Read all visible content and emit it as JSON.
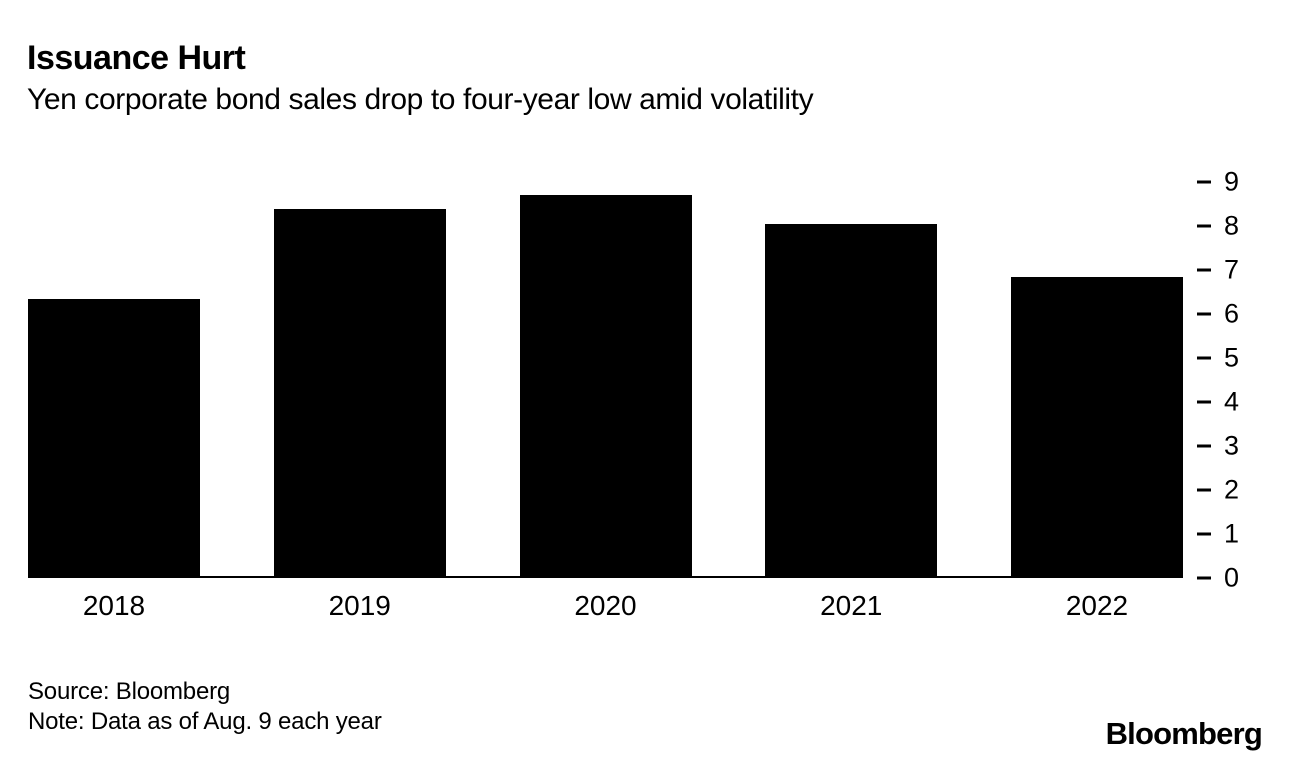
{
  "header": {
    "title": "Issuance Hurt",
    "subtitle": "Yen corporate bond sales drop to four-year low amid volatility"
  },
  "chart_data": {
    "type": "bar",
    "categories": [
      "2018",
      "2019",
      "2020",
      "2021",
      "2022"
    ],
    "values": [
      6.3,
      8.35,
      8.65,
      8.0,
      6.8
    ],
    "title": "Issuance Hurt",
    "subtitle": "Yen corporate bond sales drop to four-year low amid volatility",
    "xlabel": "",
    "ylabel": "",
    "ylim": [
      0,
      9
    ],
    "ytick_step": 1,
    "yaxis_side": "right",
    "grid": false,
    "legend": "none",
    "bar_color": "#000000",
    "background_color": "#ffffff"
  },
  "footer": {
    "source": "Source: Bloomberg",
    "note": "Note: Data as of Aug. 9 each year",
    "brand": "Bloomberg"
  },
  "colors": {
    "bar": "#000000",
    "text": "#000000",
    "background": "#ffffff"
  }
}
